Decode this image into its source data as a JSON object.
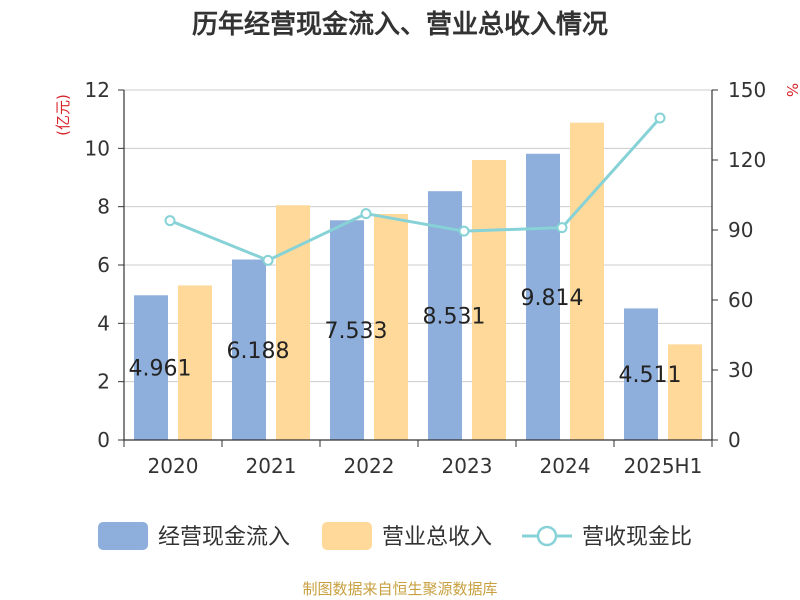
{
  "chart_data": {
    "type": "bar",
    "title": "历年经营现金流入、营业总收入情况",
    "categories": [
      "2020",
      "2021",
      "2022",
      "2023",
      "2024",
      "2025H1"
    ],
    "left_unit": "(亿元)",
    "right_unit": "%",
    "left_axis": {
      "min": 0,
      "max": 12,
      "step": 2
    },
    "right_axis": {
      "min": 0,
      "max": 150,
      "step": 30
    },
    "grid": true,
    "legend_position": "bottom",
    "series": [
      {
        "name": "经营现金流入",
        "kind": "bar",
        "axis": "left",
        "color": "#8eaedb",
        "values": [
          4.961,
          6.188,
          7.533,
          8.531,
          9.814,
          4.511
        ],
        "labels": [
          "4.961",
          "6.188",
          "7.533",
          "8.531",
          "9.814",
          "4.511"
        ]
      },
      {
        "name": "营业总收入",
        "kind": "bar",
        "axis": "left",
        "color": "#ffd99a",
        "values": [
          5.3,
          8.05,
          7.75,
          9.6,
          10.88,
          3.28
        ]
      },
      {
        "name": "营收现金比",
        "kind": "line",
        "axis": "right",
        "color": "#86d2d6",
        "values": [
          94,
          77,
          97,
          89.5,
          91,
          138
        ]
      }
    ],
    "source": "制图数据来自恒生聚源数据库"
  }
}
